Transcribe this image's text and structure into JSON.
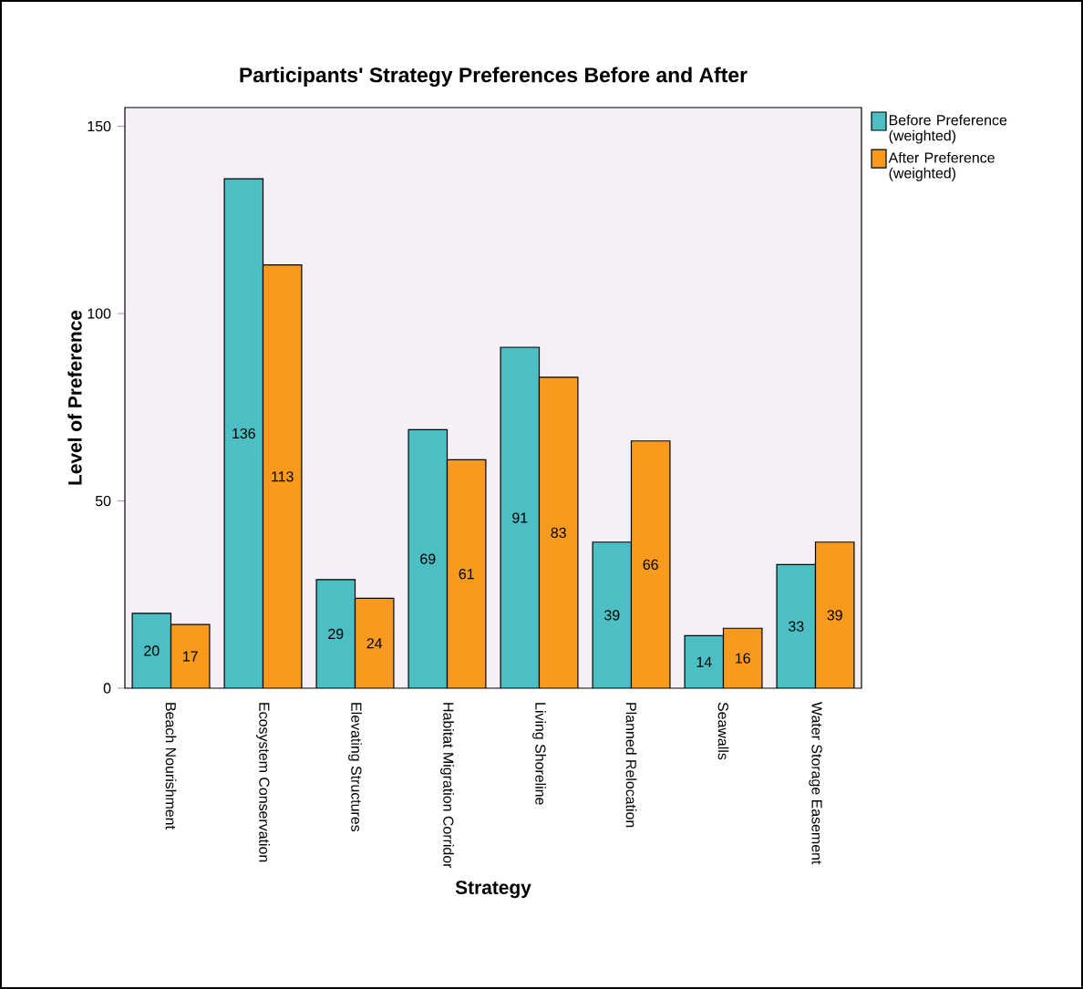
{
  "chart_data": {
    "type": "bar",
    "title": "Participants' Strategy Preferences Before and After",
    "xlabel": "Strategy",
    "ylabel": "Level of Preference",
    "categories": [
      "Beach Nourishment",
      "Ecosystem Conservation",
      "Elevating Structures",
      "Habitat Migration Corridor",
      "Living Shoreline",
      "Planned Relocation",
      "Seawalls",
      "Water Storage Easement"
    ],
    "series": [
      {
        "name": "Before Preference (weighted)",
        "color": "#4cbfc4",
        "values": [
          20,
          136,
          29,
          69,
          91,
          39,
          14,
          33
        ]
      },
      {
        "name": "After Preference (weighted)",
        "color": "#f89a1e",
        "values": [
          17,
          113,
          24,
          61,
          83,
          66,
          16,
          39
        ]
      }
    ],
    "ylim": [
      0,
      155
    ],
    "yticks": [
      0,
      50,
      100,
      150
    ],
    "data_labels": true,
    "legend": "top right",
    "grid": false
  }
}
